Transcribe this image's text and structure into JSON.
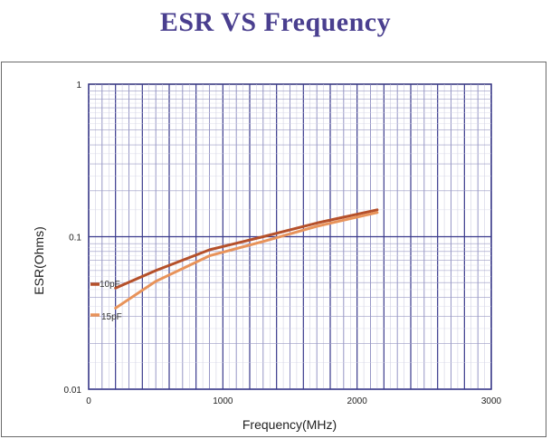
{
  "chart_data": {
    "type": "line",
    "title": "ESR VS Frequency",
    "xlabel": "Frequency(MHz)",
    "ylabel": "ESR(Ohms)",
    "xlim": [
      0,
      3000
    ],
    "ylim": [
      0.01,
      1
    ],
    "yscale": "log",
    "grid": true,
    "x_tick_labels": [
      "0",
      "1000",
      "2000",
      "3000"
    ],
    "y_tick_labels": [
      "0.01",
      "0.1",
      "1"
    ],
    "series": [
      {
        "name": "10pF",
        "color": "#b5502a",
        "x": [
          200,
          500,
          900,
          1300,
          1700,
          2150
        ],
        "y": [
          0.046,
          0.06,
          0.082,
          0.1,
          0.123,
          0.15
        ]
      },
      {
        "name": "15pF",
        "color": "#e8935a",
        "x": [
          200,
          500,
          900,
          1300,
          1700,
          2150
        ],
        "y": [
          0.034,
          0.051,
          0.075,
          0.093,
          0.117,
          0.144
        ]
      }
    ]
  }
}
